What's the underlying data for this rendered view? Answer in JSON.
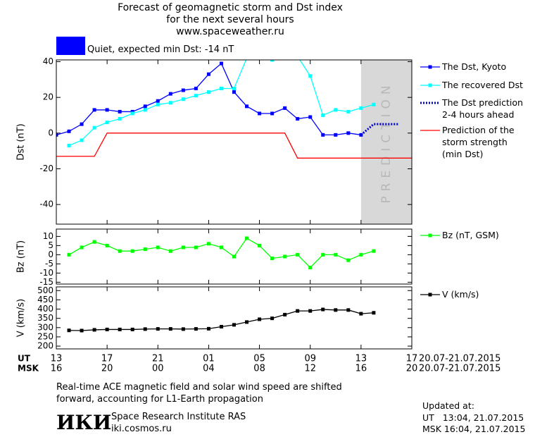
{
  "header": {
    "title": "Forecast of geomagnetic storm and Dst index\nfor the next several hours\nwww.spaceweather.ru",
    "status": {
      "text": "Quiet, expected min Dst: -14 nT",
      "color": "#0000ff"
    }
  },
  "chart_data": [
    {
      "type": "line",
      "ylabel": "Dst (nT)",
      "xlim": [
        0,
        28
      ],
      "ylim": [
        -51,
        41
      ],
      "yticks": [
        40,
        20,
        0,
        -20,
        -40
      ],
      "prediction_region": {
        "range": [
          24,
          28
        ],
        "label": "PREDICTION",
        "color": "#d8d8d8"
      },
      "series": [
        {
          "name": "The Dst, Kyoto",
          "color": "#0000ff",
          "marker": true,
          "x": [
            0,
            1,
            2,
            3,
            4,
            5,
            6,
            7,
            8,
            9,
            10,
            11,
            12,
            13,
            14,
            15,
            16,
            17,
            18,
            19,
            20,
            21,
            22,
            23,
            24
          ],
          "values": [
            -1,
            1,
            5,
            13,
            13,
            12,
            12,
            15,
            18,
            22,
            24,
            25,
            33,
            39,
            23,
            15,
            11,
            11,
            14,
            8,
            9,
            -1,
            -1,
            0,
            -1
          ]
        },
        {
          "name": "The recovered Dst",
          "color": "#00ffff",
          "marker": true,
          "x": [
            1,
            2,
            3,
            4,
            5,
            6,
            7,
            8,
            9,
            10,
            11,
            12,
            13,
            14,
            15,
            16,
            17,
            18,
            19,
            20,
            21,
            22,
            23,
            24,
            25
          ],
          "values": [
            -7,
            -4,
            3,
            6,
            8,
            11,
            13,
            16,
            17,
            19,
            21,
            23,
            25,
            25,
            42,
            42,
            41,
            42,
            43,
            32,
            10,
            13,
            12,
            14,
            16
          ]
        },
        {
          "name": "The Dst prediction\n2-4 hours ahead",
          "color": "#0000cc",
          "marker": false,
          "dash": "dotted",
          "x": [
            24,
            25,
            26,
            27
          ],
          "values": [
            -1,
            5,
            5,
            5
          ]
        },
        {
          "name": "Prediction of the\nstorm strength\n(min Dst)",
          "color": "#ff0000",
          "marker": false,
          "x": [
            0,
            3,
            4,
            18,
            19,
            28
          ],
          "values": [
            -13,
            -13,
            0,
            0,
            -14,
            -14
          ]
        }
      ]
    },
    {
      "type": "line",
      "ylabel": "Bz (nT)",
      "xlim": [
        0,
        28
      ],
      "ylim": [
        -16,
        14
      ],
      "yticks": [
        10,
        5,
        0,
        -5,
        -10,
        -15
      ],
      "series": [
        {
          "name": "Bz (nT, GSM)",
          "color": "#00ff00",
          "marker": true,
          "x": [
            1,
            2,
            3,
            4,
            5,
            6,
            7,
            8,
            9,
            10,
            11,
            12,
            13,
            14,
            15,
            16,
            17,
            18,
            19,
            20,
            21,
            22,
            23,
            24,
            25
          ],
          "values": [
            0,
            4,
            7,
            5,
            2,
            2,
            3,
            4,
            2,
            4,
            4,
            6,
            4,
            -1,
            9,
            5,
            -2,
            -1,
            0,
            -7,
            0,
            0,
            -3,
            0,
            2
          ]
        }
      ]
    },
    {
      "type": "line",
      "ylabel": "V (km/s)",
      "xlim": [
        0,
        28
      ],
      "ylim": [
        185,
        520
      ],
      "yticks": [
        500,
        450,
        400,
        350,
        300,
        250,
        200
      ],
      "xlabel_ut": "UT",
      "xlabel_msk": "MSK",
      "date_ut": "20.07-21.07.2015",
      "date_msk": "20.07-21.07.2015",
      "xticks": [
        {
          "value": 0,
          "label": "13"
        },
        {
          "value": 4,
          "label": "17"
        },
        {
          "value": 8,
          "label": "21"
        },
        {
          "value": 12,
          "label": "01"
        },
        {
          "value": 16,
          "label": "05"
        },
        {
          "value": 20,
          "label": "09"
        },
        {
          "value": 24,
          "label": "13"
        },
        {
          "value": 28,
          "label": "17"
        }
      ],
      "xticks_msk": [
        {
          "value": 0,
          "label": "16"
        },
        {
          "value": 4,
          "label": "20"
        },
        {
          "value": 8,
          "label": "00"
        },
        {
          "value": 12,
          "label": "04"
        },
        {
          "value": 16,
          "label": "08"
        },
        {
          "value": 20,
          "label": "12"
        },
        {
          "value": 24,
          "label": "16"
        },
        {
          "value": 28,
          "label": "20"
        }
      ],
      "series": [
        {
          "name": "V (km/s)",
          "color": "#000000",
          "marker": true,
          "x": [
            1,
            2,
            3,
            4,
            5,
            6,
            7,
            8,
            9,
            10,
            11,
            12,
            13,
            14,
            15,
            16,
            17,
            18,
            19,
            20,
            21,
            22,
            23,
            24,
            25
          ],
          "values": [
            285,
            284,
            288,
            290,
            290,
            290,
            292,
            293,
            293,
            292,
            293,
            294,
            305,
            315,
            330,
            345,
            350,
            370,
            390,
            390,
            398,
            395,
            395,
            375,
            380
          ]
        }
      ]
    }
  ],
  "footer": {
    "note": "Real-time ACE magnetic field and solar wind speed are shifted\nforward, accounting for L1-Earth propagation",
    "logo": "ИКИ",
    "institute": "Space Research Institute RAS",
    "url": "iki.cosmos.ru",
    "updated": "Updated at:",
    "updated_ut": "UT   13:04, 21.07.2015",
    "updated_msk": "MSK 16:04, 21.07.2015"
  }
}
